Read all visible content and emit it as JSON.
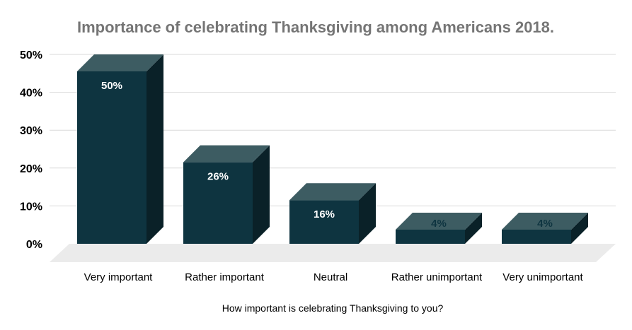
{
  "chart_data": {
    "type": "bar",
    "title": "Importance of celebrating Thanksgiving among Americans 2018.",
    "xlabel": "How important is celebrating Thanksgiving to you?",
    "ylabel": "",
    "categories": [
      "Very important",
      "Rather important",
      "Neutral",
      "Rather unimportant",
      "Very unimportant"
    ],
    "values": [
      50,
      26,
      16,
      4,
      4
    ],
    "data_labels": [
      "50%",
      "26%",
      "16%",
      "4%",
      "4%"
    ],
    "yticks": [
      "0%",
      "10%",
      "20%",
      "30%",
      "40%",
      "50%"
    ],
    "ylim": [
      0,
      50
    ],
    "grid": true,
    "legend": "none",
    "colors": {
      "bar_front": "#0e3440",
      "bar_side": "#0a2128",
      "bar_top": "#3d5c62",
      "floor": "#ebebeb",
      "grid": "#d9d9d9",
      "title": "#757575"
    }
  }
}
